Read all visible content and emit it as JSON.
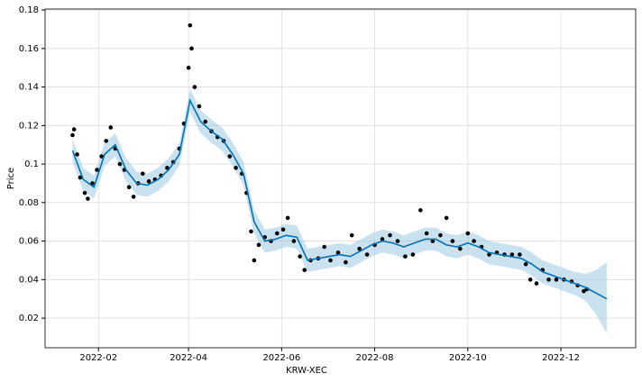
{
  "chart_data": {
    "type": "forecast",
    "xlabel": "KRW-XEC",
    "ylabel": "Price",
    "xlim": [
      "2021-12-28",
      "2023-01-19"
    ],
    "ylim": [
      0.0046,
      0.1805
    ],
    "xticks": [
      {
        "value": "2022-02-01",
        "label": "2022-02"
      },
      {
        "value": "2022-04-01",
        "label": "2022-04"
      },
      {
        "value": "2022-06-01",
        "label": "2022-06"
      },
      {
        "value": "2022-08-01",
        "label": "2022-08"
      },
      {
        "value": "2022-10-01",
        "label": "2022-10"
      },
      {
        "value": "2022-12-01",
        "label": "2022-12"
      }
    ],
    "yticks": [
      0.02,
      0.04,
      0.06,
      0.08,
      0.1,
      0.12,
      0.14,
      0.16,
      0.18
    ],
    "grid": true,
    "forecast": {
      "color": "#0072b2",
      "band_color": "#9ecae1",
      "x": [
        "2022-01-15",
        "2022-01-22",
        "2022-01-29",
        "2022-02-05",
        "2022-02-12",
        "2022-02-19",
        "2022-02-26",
        "2022-03-05",
        "2022-03-12",
        "2022-03-19",
        "2022-03-26",
        "2022-04-02",
        "2022-04-09",
        "2022-04-16",
        "2022-04-23",
        "2022-04-30",
        "2022-05-07",
        "2022-05-14",
        "2022-05-21",
        "2022-05-28",
        "2022-06-04",
        "2022-06-11",
        "2022-06-18",
        "2022-06-25",
        "2022-07-02",
        "2022-07-09",
        "2022-07-16",
        "2022-07-23",
        "2022-07-30",
        "2022-08-06",
        "2022-08-13",
        "2022-08-20",
        "2022-08-27",
        "2022-09-03",
        "2022-09-10",
        "2022-09-17",
        "2022-09-24",
        "2022-10-01",
        "2022-10-08",
        "2022-10-15",
        "2022-10-22",
        "2022-10-29",
        "2022-11-05",
        "2022-11-12",
        "2022-11-19",
        "2022-11-26",
        "2022-12-03",
        "2022-12-10",
        "2022-12-17",
        "2022-12-24",
        "2022-12-31"
      ],
      "values": [
        0.107,
        0.092,
        0.088,
        0.105,
        0.11,
        0.097,
        0.09,
        0.089,
        0.092,
        0.097,
        0.105,
        0.133,
        0.122,
        0.117,
        0.113,
        0.105,
        0.095,
        0.07,
        0.06,
        0.061,
        0.063,
        0.062,
        0.05,
        0.051,
        0.052,
        0.053,
        0.052,
        0.055,
        0.058,
        0.06,
        0.059,
        0.057,
        0.059,
        0.061,
        0.061,
        0.058,
        0.057,
        0.059,
        0.057,
        0.054,
        0.053,
        0.052,
        0.051,
        0.048,
        0.044,
        0.042,
        0.04,
        0.038,
        0.036,
        0.033,
        0.03
      ],
      "lower": [
        0.101,
        0.086,
        0.082,
        0.099,
        0.104,
        0.091,
        0.084,
        0.083,
        0.086,
        0.091,
        0.099,
        0.127,
        0.116,
        0.111,
        0.107,
        0.099,
        0.089,
        0.064,
        0.054,
        0.055,
        0.057,
        0.056,
        0.044,
        0.045,
        0.046,
        0.047,
        0.046,
        0.049,
        0.052,
        0.054,
        0.053,
        0.051,
        0.053,
        0.055,
        0.055,
        0.052,
        0.051,
        0.053,
        0.051,
        0.048,
        0.047,
        0.046,
        0.045,
        0.042,
        0.038,
        0.036,
        0.034,
        0.032,
        0.029,
        0.022,
        0.012
      ],
      "upper": [
        0.113,
        0.098,
        0.094,
        0.111,
        0.116,
        0.103,
        0.096,
        0.095,
        0.098,
        0.103,
        0.111,
        0.139,
        0.128,
        0.123,
        0.119,
        0.111,
        0.101,
        0.076,
        0.066,
        0.067,
        0.069,
        0.068,
        0.056,
        0.057,
        0.058,
        0.059,
        0.058,
        0.061,
        0.064,
        0.066,
        0.065,
        0.063,
        0.065,
        0.067,
        0.067,
        0.064,
        0.063,
        0.065,
        0.063,
        0.06,
        0.059,
        0.058,
        0.057,
        0.054,
        0.05,
        0.048,
        0.046,
        0.044,
        0.043,
        0.045,
        0.049
      ]
    },
    "points": {
      "color": "#000000",
      "x": [
        "2022-01-15",
        "2022-01-16",
        "2022-01-18",
        "2022-01-20",
        "2022-01-23",
        "2022-01-25",
        "2022-01-28",
        "2022-01-31",
        "2022-02-03",
        "2022-02-06",
        "2022-02-09",
        "2022-02-12",
        "2022-02-15",
        "2022-02-18",
        "2022-02-21",
        "2022-02-24",
        "2022-02-27",
        "2022-03-02",
        "2022-03-06",
        "2022-03-10",
        "2022-03-14",
        "2022-03-18",
        "2022-03-22",
        "2022-03-26",
        "2022-03-29",
        "2022-04-01",
        "2022-04-02",
        "2022-04-03",
        "2022-04-05",
        "2022-04-08",
        "2022-04-12",
        "2022-04-16",
        "2022-04-20",
        "2022-04-24",
        "2022-04-28",
        "2022-05-02",
        "2022-05-06",
        "2022-05-09",
        "2022-05-12",
        "2022-05-14",
        "2022-05-17",
        "2022-05-21",
        "2022-05-25",
        "2022-05-29",
        "2022-06-02",
        "2022-06-05",
        "2022-06-09",
        "2022-06-13",
        "2022-06-16",
        "2022-06-20",
        "2022-06-25",
        "2022-06-29",
        "2022-07-03",
        "2022-07-08",
        "2022-07-13",
        "2022-07-17",
        "2022-07-22",
        "2022-07-27",
        "2022-08-01",
        "2022-08-06",
        "2022-08-11",
        "2022-08-16",
        "2022-08-21",
        "2022-08-26",
        "2022-08-31",
        "2022-09-04",
        "2022-09-08",
        "2022-09-13",
        "2022-09-17",
        "2022-09-21",
        "2022-09-26",
        "2022-10-01",
        "2022-10-05",
        "2022-10-10",
        "2022-10-15",
        "2022-10-20",
        "2022-10-25",
        "2022-10-30",
        "2022-11-04",
        "2022-11-08",
        "2022-11-11",
        "2022-11-15",
        "2022-11-19",
        "2022-11-23",
        "2022-11-28",
        "2022-12-03",
        "2022-12-08",
        "2022-12-12",
        "2022-12-16",
        "2022-12-18"
      ],
      "values": [
        0.115,
        0.118,
        0.105,
        0.093,
        0.085,
        0.082,
        0.09,
        0.097,
        0.104,
        0.112,
        0.119,
        0.108,
        0.1,
        0.097,
        0.088,
        0.083,
        0.09,
        0.095,
        0.091,
        0.092,
        0.094,
        0.098,
        0.101,
        0.108,
        0.121,
        0.15,
        0.172,
        0.16,
        0.14,
        0.13,
        0.122,
        0.117,
        0.114,
        0.112,
        0.104,
        0.098,
        0.095,
        0.085,
        0.065,
        0.05,
        0.058,
        0.062,
        0.06,
        0.064,
        0.066,
        0.072,
        0.06,
        0.052,
        0.045,
        0.05,
        0.051,
        0.057,
        0.05,
        0.054,
        0.049,
        0.063,
        0.056,
        0.053,
        0.058,
        0.061,
        0.063,
        0.06,
        0.052,
        0.053,
        0.076,
        0.064,
        0.06,
        0.063,
        0.072,
        0.06,
        0.056,
        0.064,
        0.06,
        0.057,
        0.053,
        0.054,
        0.053,
        0.053,
        0.053,
        0.048,
        0.04,
        0.038,
        0.045,
        0.04,
        0.04,
        0.04,
        0.039,
        0.037,
        0.034,
        0.035
      ]
    }
  }
}
